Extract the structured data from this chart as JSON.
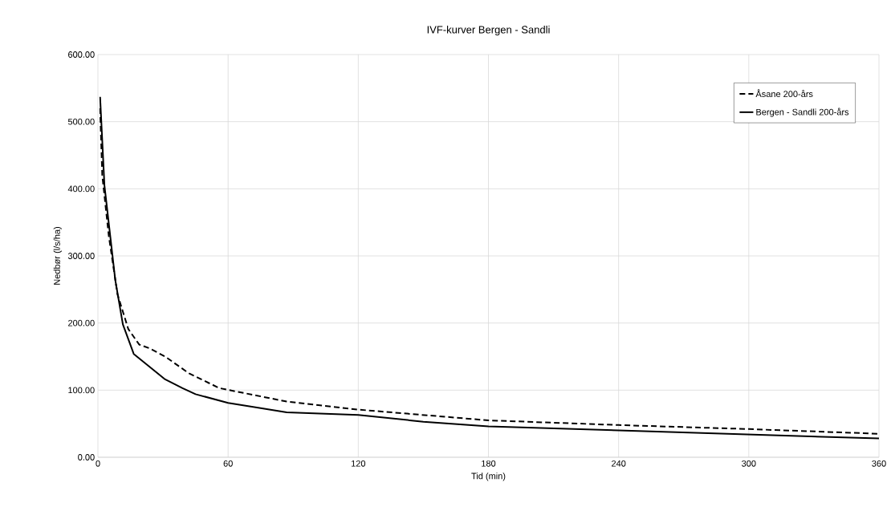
{
  "chart_data": {
    "type": "line",
    "title": "IVF-kurver Bergen - Sandli",
    "xlabel": "Tid (min)",
    "ylabel": "Nedbør  (l/s/ha)",
    "xlim": [
      0,
      360
    ],
    "xticks": [
      0,
      60,
      120,
      180,
      240,
      300,
      360
    ],
    "ylim": [
      0,
      600
    ],
    "yticks": [
      {
        "value": 0,
        "label": "0.00"
      },
      {
        "value": 100,
        "label": "100.00"
      },
      {
        "value": 200,
        "label": "200.00"
      },
      {
        "value": 300,
        "label": "300.00"
      },
      {
        "value": 400,
        "label": "400.00"
      },
      {
        "value": 500,
        "label": "500.00"
      },
      {
        "value": 600,
        "label": "600.00"
      }
    ],
    "grid": true,
    "legend": "top right",
    "marker": "none",
    "series": [
      {
        "name": "Åsane 200-års",
        "color": "#000000",
        "line_style": "dashed",
        "x": [
          1,
          2,
          5,
          9,
          14,
          19,
          24,
          31,
          42,
          56,
          87,
          120,
          180,
          240,
          300,
          360
        ],
        "values": [
          520,
          420,
          330,
          243,
          191,
          168,
          162,
          150,
          125,
          103,
          83,
          71,
          55,
          48,
          42,
          35
        ]
      },
      {
        "name": "Bergen - Sandli 200-års",
        "color": "#000000",
        "line_style": "solid",
        "x": [
          1,
          3,
          8,
          11.5,
          16.5,
          31,
          39,
          45,
          60,
          87,
          120,
          150,
          180,
          240,
          300,
          360
        ],
        "values": [
          537,
          405,
          264,
          198,
          154,
          116,
          103,
          94,
          81,
          67,
          63,
          53,
          46,
          40,
          34,
          28
        ]
      }
    ]
  }
}
